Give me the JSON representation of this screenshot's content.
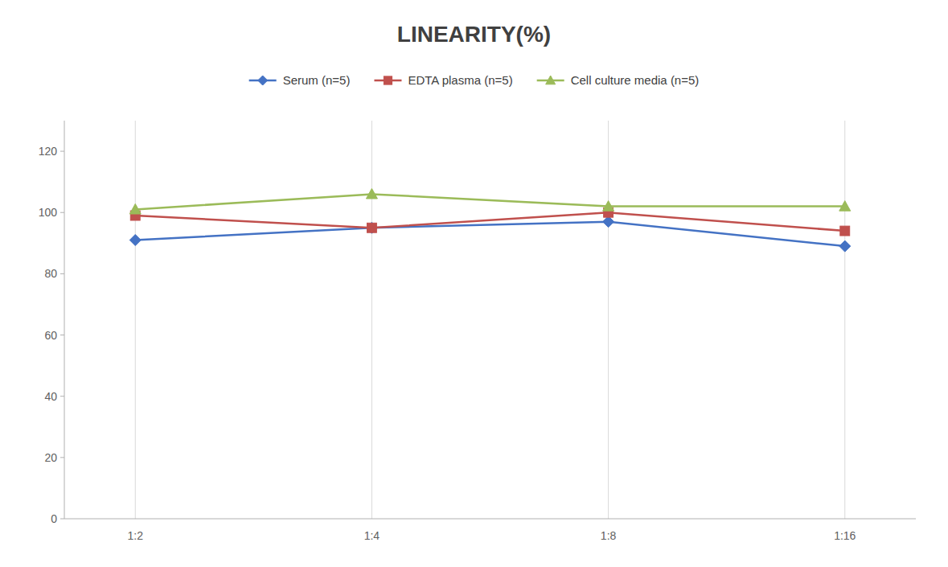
{
  "chart_data": {
    "type": "line",
    "title": "LINEARITY(%)",
    "categories": [
      "1:2",
      "1:4",
      "1:8",
      "1:16"
    ],
    "series": [
      {
        "name": "Serum (n=5)",
        "color": "#4472C4",
        "marker": "diamond",
        "values": [
          91,
          95,
          97,
          89
        ]
      },
      {
        "name": "EDTA plasma (n=5)",
        "color": "#C0504D",
        "marker": "square",
        "values": [
          99,
          95,
          100,
          94
        ]
      },
      {
        "name": "Cell culture media (n=5)",
        "color": "#9BBB59",
        "marker": "triangle",
        "values": [
          101,
          106,
          102,
          102
        ]
      }
    ],
    "ylim": [
      0,
      130
    ],
    "yticks": [
      0,
      20,
      40,
      60,
      80,
      100,
      120
    ],
    "grid": "x",
    "legend": "top"
  }
}
